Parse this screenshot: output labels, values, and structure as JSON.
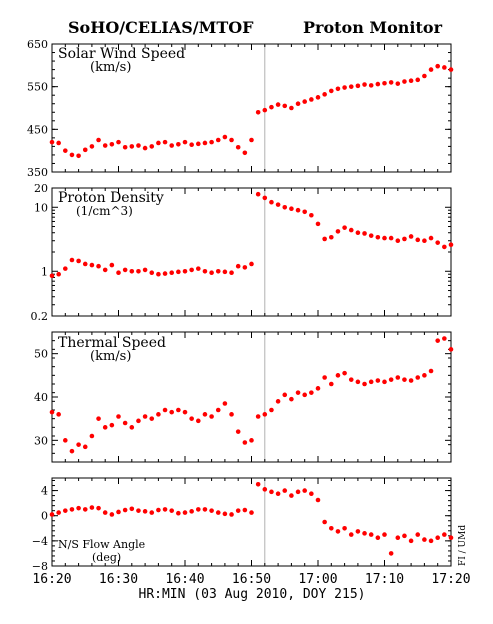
{
  "header": {
    "left_title": "SoHO/CELIAS/MTOF",
    "right_title": "Proton Monitor"
  },
  "x_axis": {
    "label": "HR:MIN (03 Aug 2010, DOY 215)",
    "tick_labels": [
      "16:20",
      "16:30",
      "16:40",
      "16:50",
      "17:00",
      "17:10",
      "17:20"
    ],
    "range": [
      "16:20",
      "17:20"
    ]
  },
  "credit": "FI / UMd",
  "marker_color": "#ff0000",
  "chart_data": [
    {
      "type": "scatter",
      "title": "Solar Wind Speed",
      "units": "(km/s)",
      "scale": "linear",
      "ylim": [
        350,
        650
      ],
      "yticks": [
        350,
        450,
        550,
        650
      ],
      "ytick_labels": [
        "350",
        "450",
        "550",
        "650"
      ],
      "gap_marker": "16:52",
      "x": [
        "16:20",
        "16:21",
        "16:22",
        "16:23",
        "16:24",
        "16:25",
        "16:26",
        "16:27",
        "16:28",
        "16:29",
        "16:30",
        "16:31",
        "16:32",
        "16:33",
        "16:34",
        "16:35",
        "16:36",
        "16:37",
        "16:38",
        "16:39",
        "16:40",
        "16:41",
        "16:42",
        "16:43",
        "16:44",
        "16:45",
        "16:46",
        "16:47",
        "16:48",
        "16:49",
        "16:50",
        "16:51",
        "16:52",
        "16:53",
        "16:54",
        "16:55",
        "16:56",
        "16:57",
        "16:58",
        "16:59",
        "17:00",
        "17:01",
        "17:02",
        "17:03",
        "17:04",
        "17:05",
        "17:06",
        "17:07",
        "17:08",
        "17:09",
        "17:10",
        "17:11",
        "17:12",
        "17:13",
        "17:14",
        "17:15",
        "17:16",
        "17:17",
        "17:18",
        "17:19",
        "17:20"
      ],
      "values": [
        420,
        418,
        400,
        390,
        388,
        402,
        410,
        425,
        412,
        415,
        420,
        408,
        410,
        412,
        406,
        410,
        418,
        420,
        412,
        415,
        420,
        414,
        416,
        418,
        420,
        425,
        432,
        425,
        408,
        395,
        425,
        490,
        495,
        502,
        508,
        505,
        500,
        510,
        515,
        520,
        525,
        532,
        540,
        545,
        548,
        550,
        552,
        555,
        553,
        556,
        558,
        560,
        557,
        562,
        564,
        566,
        575,
        590,
        598,
        595,
        590
      ]
    },
    {
      "type": "scatter",
      "title": "Proton Density",
      "units": "(1/cm^3)",
      "scale": "log",
      "ylim": [
        0.2,
        20
      ],
      "yticks": [
        0.2,
        1,
        10,
        20
      ],
      "ytick_labels": [
        "0.2",
        "1",
        "10",
        "20"
      ],
      "gap_marker": "16:52",
      "x": [
        "16:20",
        "16:21",
        "16:22",
        "16:23",
        "16:24",
        "16:25",
        "16:26",
        "16:27",
        "16:28",
        "16:29",
        "16:30",
        "16:31",
        "16:32",
        "16:33",
        "16:34",
        "16:35",
        "16:36",
        "16:37",
        "16:38",
        "16:39",
        "16:40",
        "16:41",
        "16:42",
        "16:43",
        "16:44",
        "16:45",
        "16:46",
        "16:47",
        "16:48",
        "16:49",
        "16:50",
        "16:51",
        "16:52",
        "16:53",
        "16:54",
        "16:55",
        "16:56",
        "16:57",
        "16:58",
        "16:59",
        "17:00",
        "17:01",
        "17:02",
        "17:03",
        "17:04",
        "17:05",
        "17:06",
        "17:07",
        "17:08",
        "17:09",
        "17:10",
        "17:11",
        "17:12",
        "17:13",
        "17:14",
        "17:15",
        "17:16",
        "17:17",
        "17:18",
        "17:19",
        "17:20"
      ],
      "values": [
        0.85,
        0.9,
        1.1,
        1.5,
        1.45,
        1.3,
        1.25,
        1.2,
        1.05,
        1.25,
        0.95,
        1.05,
        1.0,
        1.0,
        1.05,
        0.95,
        0.9,
        0.92,
        0.95,
        0.98,
        1.0,
        1.05,
        1.1,
        1.0,
        0.95,
        1.0,
        0.98,
        0.95,
        1.2,
        1.15,
        1.3,
        16,
        14,
        12,
        11,
        10,
        9.5,
        9.0,
        8.5,
        7.5,
        5.5,
        3.2,
        3.4,
        4.2,
        4.8,
        4.4,
        4.0,
        3.9,
        3.6,
        3.4,
        3.3,
        3.3,
        3.0,
        3.2,
        3.5,
        3.1,
        3.0,
        3.3,
        2.8,
        2.4,
        2.6
      ]
    },
    {
      "type": "scatter",
      "title": "Thermal Speed",
      "units": "(km/s)",
      "scale": "linear",
      "ylim": [
        25,
        55
      ],
      "yticks": [
        30,
        40,
        50
      ],
      "ytick_labels": [
        "30",
        "40",
        "50"
      ],
      "gap_marker": "16:52",
      "x": [
        "16:20",
        "16:21",
        "16:22",
        "16:23",
        "16:24",
        "16:25",
        "16:26",
        "16:27",
        "16:28",
        "16:29",
        "16:30",
        "16:31",
        "16:32",
        "16:33",
        "16:34",
        "16:35",
        "16:36",
        "16:37",
        "16:38",
        "16:39",
        "16:40",
        "16:41",
        "16:42",
        "16:43",
        "16:44",
        "16:45",
        "16:46",
        "16:47",
        "16:48",
        "16:49",
        "16:50",
        "16:51",
        "16:52",
        "16:53",
        "16:54",
        "16:55",
        "16:56",
        "16:57",
        "16:58",
        "16:59",
        "17:00",
        "17:01",
        "17:02",
        "17:03",
        "17:04",
        "17:05",
        "17:06",
        "17:07",
        "17:08",
        "17:09",
        "17:10",
        "17:11",
        "17:12",
        "17:13",
        "17:14",
        "17:15",
        "17:16",
        "17:17",
        "17:18",
        "17:19",
        "17:20"
      ],
      "values": [
        36.5,
        36,
        30,
        27.5,
        29,
        28.5,
        31,
        35,
        33,
        33.5,
        35.5,
        34,
        33,
        34.5,
        35.5,
        35,
        36,
        37,
        36.5,
        37,
        36.5,
        35,
        34.5,
        36,
        35.5,
        37,
        38.5,
        36,
        32,
        29.5,
        30,
        35.5,
        36,
        37,
        39,
        40.5,
        39.5,
        41,
        40.5,
        41,
        42,
        44.5,
        43,
        45,
        45.5,
        44,
        43.5,
        43,
        43.5,
        43.8,
        43.5,
        44,
        44.5,
        44,
        43.8,
        44.5,
        45,
        46,
        53,
        53.5,
        51
      ]
    },
    {
      "type": "scatter",
      "title": "N/S Flow Angle",
      "units": "(deg)",
      "scale": "linear",
      "ylim": [
        -8,
        6
      ],
      "yticks": [
        -8,
        -4,
        0,
        4
      ],
      "ytick_labels": [
        "−8",
        "−4",
        "0",
        "4"
      ],
      "gap_marker": "16:52",
      "x": [
        "16:20",
        "16:21",
        "16:22",
        "16:23",
        "16:24",
        "16:25",
        "16:26",
        "16:27",
        "16:28",
        "16:29",
        "16:30",
        "16:31",
        "16:32",
        "16:33",
        "16:34",
        "16:35",
        "16:36",
        "16:37",
        "16:38",
        "16:39",
        "16:40",
        "16:41",
        "16:42",
        "16:43",
        "16:44",
        "16:45",
        "16:46",
        "16:47",
        "16:48",
        "16:49",
        "16:50",
        "16:51",
        "16:52",
        "16:53",
        "16:54",
        "16:55",
        "16:56",
        "16:57",
        "16:58",
        "16:59",
        "17:00",
        "17:01",
        "17:02",
        "17:03",
        "17:04",
        "17:05",
        "17:06",
        "17:07",
        "17:08",
        "17:09",
        "17:10",
        "17:11",
        "17:12",
        "17:13",
        "17:14",
        "17:15",
        "17:16",
        "17:17",
        "17:18",
        "17:19",
        "17:20"
      ],
      "values": [
        0.2,
        0.5,
        0.8,
        1.0,
        1.2,
        1.0,
        1.3,
        1.2,
        0.5,
        0.2,
        0.6,
        0.9,
        1.1,
        0.8,
        0.7,
        0.5,
        0.9,
        1.0,
        0.8,
        0.4,
        0.5,
        0.7,
        1.0,
        1.0,
        0.8,
        0.5,
        0.3,
        0.2,
        0.8,
        0.9,
        0.5,
        5.0,
        4.2,
        3.8,
        3.5,
        4.0,
        3.2,
        3.8,
        4.0,
        3.5,
        2.5,
        -1.0,
        -2.0,
        -2.5,
        -2.0,
        -3.0,
        -2.5,
        -2.8,
        -3.0,
        -3.5,
        -3.0,
        -6.0,
        -3.5,
        -3.2,
        -4.0,
        -3.0,
        -3.8,
        -4.0,
        -3.5,
        -3.0,
        -3.5
      ]
    }
  ]
}
